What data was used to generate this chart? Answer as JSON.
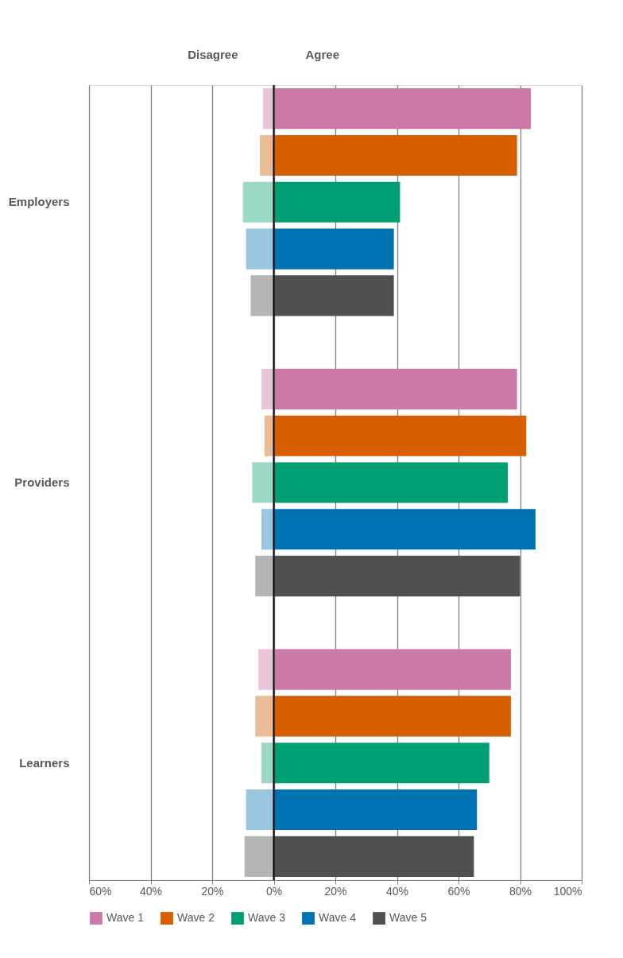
{
  "chart_data": {
    "type": "bar",
    "orientation": "horizontal",
    "stacked": true,
    "categories": [
      null,
      null,
      "Employers",
      null,
      null,
      null,
      null,
      null,
      "Providers",
      null,
      null,
      null,
      null,
      null,
      "Learners",
      null,
      null
    ],
    "series": [
      {
        "color": "#eac4d8",
        "values": [
          -3.5,
          null,
          null,
          null,
          null,
          null,
          -4,
          null,
          null,
          null,
          null,
          null,
          -5,
          null,
          null,
          null,
          null
        ]
      },
      {
        "color": "#ebbd97",
        "values": [
          null,
          -4.5,
          null,
          null,
          null,
          null,
          null,
          -3,
          null,
          null,
          null,
          null,
          null,
          -6,
          null,
          null,
          null
        ]
      },
      {
        "color": "#9cd8c6",
        "values": [
          null,
          null,
          -10,
          null,
          null,
          null,
          null,
          null,
          -7,
          null,
          null,
          null,
          null,
          null,
          -4,
          null,
          null
        ]
      },
      {
        "color": "#9ac6df",
        "values": [
          null,
          null,
          null,
          -9,
          null,
          null,
          null,
          null,
          null,
          -4,
          null,
          null,
          null,
          null,
          null,
          -9,
          null
        ]
      },
      {
        "color": "#b5b5b5",
        "values": [
          null,
          null,
          null,
          null,
          -7.5,
          null,
          null,
          null,
          null,
          null,
          -6,
          null,
          null,
          null,
          null,
          null,
          -9.5
        ]
      },
      {
        "name": "Wave 1",
        "color": "#cc79a7",
        "values": [
          83.5,
          null,
          null,
          null,
          null,
          null,
          79,
          null,
          null,
          null,
          null,
          null,
          77,
          null,
          null,
          null,
          null
        ]
      },
      {
        "name": "Wave 2",
        "color": "#d55e00",
        "values": [
          null,
          79,
          null,
          null,
          null,
          null,
          null,
          82,
          null,
          null,
          null,
          null,
          null,
          77,
          null,
          null,
          null
        ]
      },
      {
        "name": "Wave 3",
        "color": "#009e73",
        "values": [
          null,
          null,
          41,
          null,
          null,
          null,
          null,
          null,
          76,
          null,
          null,
          null,
          null,
          null,
          70,
          null,
          null
        ]
      },
      {
        "name": "Wave 4",
        "color": "#0072b2",
        "values": [
          null,
          null,
          null,
          39,
          null,
          null,
          null,
          null,
          null,
          85,
          null,
          null,
          null,
          null,
          null,
          66,
          null
        ]
      },
      {
        "name": "Wave 5",
        "color": "#505050",
        "values": [
          null,
          null,
          null,
          null,
          39,
          null,
          null,
          null,
          null,
          null,
          80,
          null,
          null,
          null,
          null,
          null,
          65
        ]
      }
    ],
    "xlim": [
      -60,
      100
    ],
    "xticks": [
      {
        "value": -60,
        "label": "60%"
      },
      {
        "value": -40,
        "label": "40%"
      },
      {
        "value": -20,
        "label": "20%"
      },
      {
        "value": 0,
        "label": "0%"
      },
      {
        "value": 20,
        "label": "20%"
      },
      {
        "value": 40,
        "label": "40%"
      },
      {
        "value": 60,
        "label": "60%"
      },
      {
        "value": 80,
        "label": "80%"
      },
      {
        "value": 100,
        "label": "100%"
      }
    ],
    "grid": "x",
    "legend": "bottom",
    "ref_lines": [
      {
        "axis": "x",
        "value": 0,
        "color": "#000000"
      }
    ],
    "annotations": [
      "Disagree",
      "Agree"
    ]
  }
}
